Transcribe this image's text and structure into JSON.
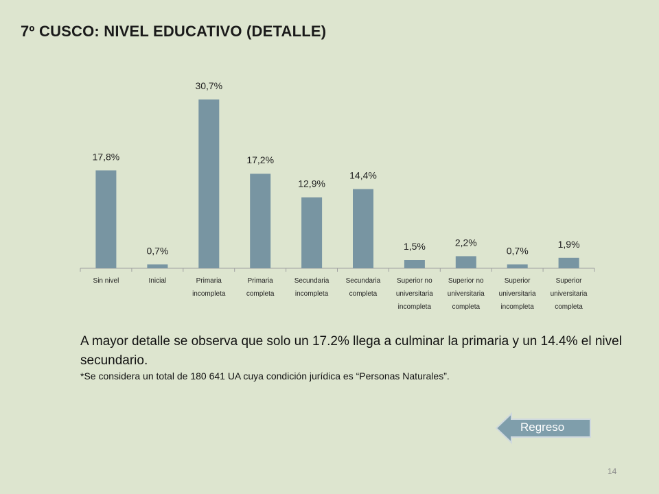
{
  "slide": {
    "title": "7º CUSCO:  NIVEL EDUCATIVO (DETALLE)",
    "body_text": "A mayor detalle se  observa que solo un 17.2%  llega a culminar la primaria y un 14.4% el nivel secundario.",
    "note_text": "*Se considera un total de 180 641 UA cuya condición jurídica es “Personas Naturales”.",
    "back_button_label": "Regreso",
    "page_number": "14"
  },
  "colors": {
    "background": "#dde5cf",
    "bar": "#7895a2",
    "axis": "#a0a0a0",
    "button_fill": "#7f9eab",
    "button_border": "#cfd9de"
  },
  "chart_data": {
    "type": "bar",
    "title": "",
    "xlabel": "",
    "ylabel": "",
    "categories": [
      "Sin nivel",
      "Inicial",
      "Primaria incompleta",
      "Primaria completa",
      "Secundaria incompleta",
      "Secundaria completa",
      "Superior no universitaria incompleta",
      "Superior no universitaria completa",
      "Superior universitaria incompleta",
      "Superior universitaria completa"
    ],
    "category_lines": [
      [
        "Sin nivel"
      ],
      [
        "Inicial"
      ],
      [
        "Primaria",
        "incompleta"
      ],
      [
        "Primaria",
        "completa"
      ],
      [
        "Secundaria",
        "incompleta"
      ],
      [
        "Secundaria",
        "completa"
      ],
      [
        "Superior no",
        "universitaria",
        "incompleta"
      ],
      [
        "Superior no",
        "universitaria",
        "completa"
      ],
      [
        "Superior",
        "universitaria",
        "incompleta"
      ],
      [
        "Superior",
        "universitaria",
        "completa"
      ]
    ],
    "values": [
      17.8,
      0.7,
      30.7,
      17.2,
      12.9,
      14.4,
      1.5,
      2.2,
      0.7,
      1.9
    ],
    "data_labels": [
      "17,8%",
      "0,7%",
      "30,7%",
      "17,2%",
      "12,9%",
      "14,4%",
      "1,5%",
      "2,2%",
      "0,7%",
      "1,9%"
    ],
    "unit": "%",
    "ylim": [
      0,
      30.7
    ],
    "grid": false,
    "legend": "none"
  }
}
